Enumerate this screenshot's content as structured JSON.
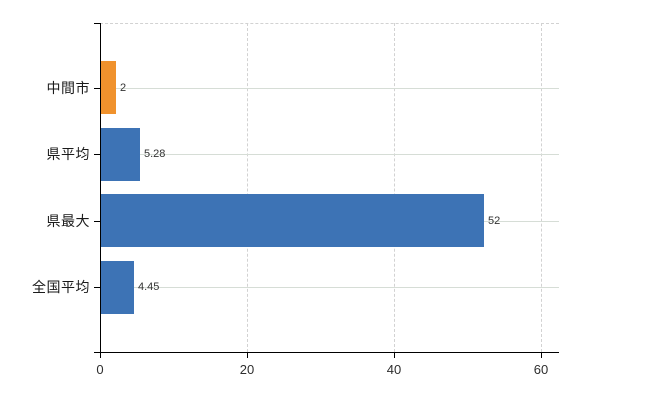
{
  "chart_data": {
    "type": "bar",
    "orientation": "horizontal",
    "title": "",
    "xlabel": "",
    "ylabel": "",
    "categories": [
      "中間市",
      "県平均",
      "県最大",
      "全国平均"
    ],
    "values": [
      2,
      5.28,
      52,
      4.45
    ],
    "value_labels": [
      "2",
      "5.28",
      "52",
      "4.45"
    ],
    "bar_colors": [
      "#f0922d",
      "#3d73b5",
      "#3d73b5",
      "#3d73b5"
    ],
    "x_ticks": [
      0,
      20,
      40,
      60
    ],
    "x_tick_labels": [
      "0",
      "20",
      "40",
      "60"
    ],
    "xlim": [
      0,
      62.4
    ],
    "grid": {
      "horizontal": "solid line at each category center",
      "vertical": "dashed line at each x tick",
      "top_border": "dashed"
    },
    "legend": "none"
  },
  "colors": {
    "bar_blue": "#3d73b5",
    "bar_orange": "#f0922d",
    "axis": "#000000",
    "gridline_horizontal": "#d6ddd6",
    "gridline_vertical": "#d2d2d2",
    "tick_text": "#2e2e2e",
    "value_text": "#333333",
    "category_text": "#1a1a1a",
    "background": "#ffffff"
  }
}
